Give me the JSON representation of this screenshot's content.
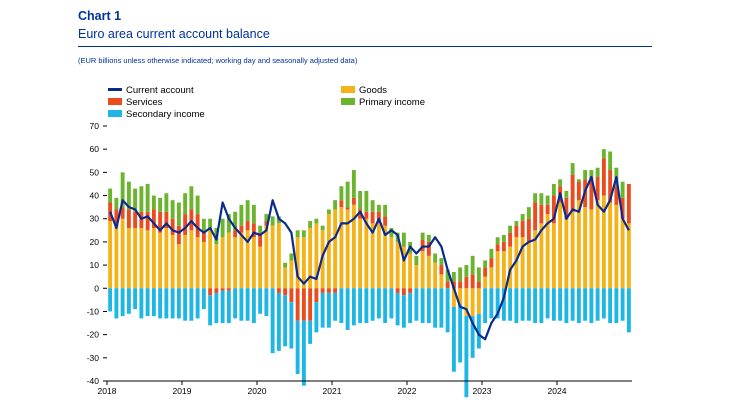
{
  "header": {
    "chart_label": "Chart 1",
    "title": "Euro area current account balance",
    "note": "(EUR billions unless otherwise indicated; working day and seasonally adjusted data)"
  },
  "colors": {
    "goods": "#F5B31A",
    "services": "#EB4C1E",
    "primary_income": "#6BB42D",
    "secondary_income": "#1EB6E5",
    "current_account": "#0A2A8C",
    "axis": "#000000"
  },
  "chart_data": {
    "type": "bar",
    "title": "Euro area current account balance",
    "xlabel": "",
    "ylabel": "EUR billions",
    "ylim": [
      -40,
      70
    ],
    "yticks": [
      -40,
      -30,
      -20,
      -10,
      0,
      10,
      20,
      30,
      40,
      50,
      60,
      70
    ],
    "x_tick_labels": [
      "2018",
      "2019",
      "2020",
      "2021",
      "2022",
      "2023",
      "2024"
    ],
    "months_per_tick": 12,
    "start": "2018-01",
    "legend": [
      {
        "key": "current_account",
        "label": "Current account",
        "kind": "line"
      },
      {
        "key": "goods",
        "label": "Goods",
        "kind": "bar"
      },
      {
        "key": "services",
        "label": "Services",
        "kind": "bar"
      },
      {
        "key": "primary_income",
        "label": "Primary income",
        "kind": "bar"
      },
      {
        "key": "secondary_income",
        "label": "Secondary income",
        "kind": "bar"
      }
    ],
    "series": [
      {
        "name": "Goods",
        "key": "goods",
        "values": [
          29,
          27,
          30,
          26,
          26,
          26,
          25,
          26,
          24,
          26,
          23,
          19,
          23,
          25,
          22,
          20,
          25,
          19,
          22,
          24,
          22,
          24,
          25,
          22,
          18,
          27,
          27,
          28,
          9,
          12,
          22,
          22,
          26,
          28,
          25,
          32,
          34,
          35,
          34,
          36,
          30,
          30,
          28,
          28,
          27,
          22,
          20,
          18,
          15,
          10,
          16,
          14,
          11,
          6,
          0,
          -8,
          -7,
          -12,
          -12,
          -11,
          5,
          9,
          16,
          16,
          18,
          22,
          22,
          20,
          25,
          28,
          32,
          28,
          37,
          30,
          33,
          38,
          35,
          34,
          38,
          40,
          37,
          36,
          30,
          28
        ]
      },
      {
        "name": "Services",
        "key": "services",
        "values": [
          8,
          7,
          5,
          8,
          7,
          7,
          8,
          8,
          9,
          7,
          7,
          8,
          9,
          9,
          10,
          4,
          -3,
          -2,
          -1,
          -1,
          3,
          3,
          4,
          6,
          6,
          2,
          0,
          -2,
          -3,
          -6,
          -14,
          -14,
          -14,
          -6,
          -2,
          -2,
          -2,
          3,
          1,
          3,
          4,
          3,
          5,
          5,
          4,
          0,
          -2,
          -3,
          -2,
          0,
          5,
          6,
          0,
          4,
          3,
          3,
          3,
          5,
          6,
          3,
          4,
          4,
          3,
          4,
          6,
          5,
          7,
          10,
          12,
          8,
          4,
          12,
          7,
          9,
          16,
          8,
          12,
          14,
          10,
          16,
          14,
          8,
          9,
          17
        ]
      },
      {
        "name": "Primary income",
        "key": "primary_income",
        "values": [
          6,
          5,
          15,
          12,
          10,
          11,
          12,
          6,
          6,
          8,
          8,
          10,
          9,
          10,
          8,
          6,
          5,
          7,
          8,
          8,
          8,
          9,
          9,
          8,
          3,
          3,
          4,
          3,
          2,
          3,
          3,
          3,
          3,
          2,
          2,
          2,
          4,
          6,
          11,
          12,
          8,
          9,
          5,
          3,
          5,
          4,
          4,
          6,
          5,
          4,
          3,
          3,
          4,
          3,
          5,
          4,
          6,
          5,
          8,
          6,
          3,
          4,
          3,
          3,
          3,
          2,
          3,
          5,
          4,
          5,
          4,
          5,
          3,
          3,
          5,
          1,
          4,
          3,
          4,
          4,
          8,
          8,
          7,
          0
        ]
      },
      {
        "name": "Secondary income",
        "key": "secondary_income",
        "values": [
          -10,
          -13,
          -12,
          -11,
          -9,
          -13,
          -12,
          -12,
          -13,
          -13,
          -13,
          -13,
          -14,
          -14,
          -13,
          -9,
          -13,
          -13,
          -14,
          -14,
          -13,
          -14,
          -14,
          -15,
          -11,
          -12,
          -28,
          -25,
          -22,
          -20,
          -23,
          -28,
          -10,
          -13,
          -15,
          -15,
          -12,
          -15,
          -18,
          -16,
          -15,
          -15,
          -14,
          -13,
          -15,
          -13,
          -14,
          -14,
          -13,
          -14,
          -15,
          -15,
          -17,
          -17,
          -19,
          -28,
          -25,
          -35,
          -18,
          -15,
          -15,
          -13,
          -13,
          -14,
          -14,
          -15,
          -14,
          -14,
          -15,
          -15,
          -13,
          -14,
          -14,
          -15,
          -14,
          -15,
          -14,
          -15,
          -14,
          -13,
          -15,
          -15,
          -14,
          -19
        ]
      },
      {
        "name": "Current account",
        "key": "current_account",
        "values": [
          33,
          26,
          38,
          35,
          34,
          30,
          31,
          28,
          25,
          28,
          25,
          24,
          26,
          29,
          26,
          24,
          26,
          21,
          37,
          30,
          26,
          23,
          20,
          24,
          23,
          25,
          38,
          30,
          28,
          24,
          5,
          2,
          5,
          4,
          14,
          20,
          22,
          28,
          28,
          30,
          33,
          28,
          24,
          30,
          23,
          25,
          23,
          12,
          18,
          15,
          18,
          18,
          22,
          18,
          8,
          0,
          -8,
          -9,
          -15,
          -20,
          -22,
          -15,
          -11,
          -4,
          8,
          12,
          18,
          20,
          21,
          25,
          28,
          30,
          41,
          30,
          34,
          33,
          42,
          48,
          36,
          33,
          38,
          48,
          30,
          25
        ]
      }
    ]
  }
}
